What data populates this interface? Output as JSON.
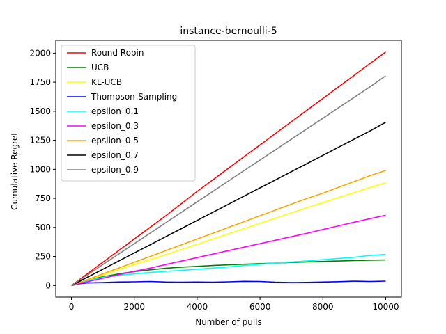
{
  "chart_data": {
    "type": "line",
    "title": "instance-bernoulli-5",
    "xlabel": "Number of pulls",
    "ylabel": "Cumulative Regret",
    "xlim": [
      -500,
      10500
    ],
    "ylim": [
      -100,
      2110
    ],
    "xticks": [
      0,
      2000,
      4000,
      6000,
      8000,
      10000
    ],
    "yticks": [
      0,
      250,
      500,
      750,
      1000,
      1250,
      1500,
      1750,
      2000
    ],
    "legend_position": "upper-left",
    "grid": false,
    "x": [
      0,
      250,
      500,
      1000,
      1500,
      2000,
      2500,
      3000,
      3500,
      4000,
      4500,
      5000,
      5500,
      6000,
      6500,
      7000,
      7500,
      8000,
      8500,
      9000,
      9500,
      10000
    ],
    "series": [
      {
        "name": "Round Robin",
        "color": "#ff0000",
        "values": [
          0,
          50,
          100,
          200,
          300,
          400,
          500,
          600,
          705,
          810,
          910,
          1010,
          1110,
          1210,
          1310,
          1410,
          1510,
          1610,
          1710,
          1810,
          1910,
          2010
        ]
      },
      {
        "name": "UCB",
        "color": "#008000",
        "values": [
          0,
          25,
          45,
          75,
          100,
          120,
          135,
          148,
          158,
          165,
          172,
          178,
          183,
          188,
          193,
          198,
          203,
          207,
          211,
          215,
          218,
          220
        ]
      },
      {
        "name": "KL-UCB",
        "color": "#ffff00",
        "values": [
          0,
          22,
          45,
          90,
          135,
          180,
          222,
          265,
          310,
          355,
          400,
          445,
          490,
          535,
          580,
          625,
          670,
          713,
          757,
          800,
          843,
          885
        ]
      },
      {
        "name": "Thompson-Sampling",
        "color": "#0000ff",
        "values": [
          0,
          15,
          22,
          25,
          30,
          32,
          35,
          30,
          28,
          30,
          28,
          32,
          36,
          35,
          28,
          25,
          27,
          30,
          33,
          37,
          35,
          38
        ]
      },
      {
        "name": "epsilon_0.1",
        "color": "#00ffff",
        "values": [
          0,
          20,
          40,
          70,
          88,
          100,
          112,
          122,
          130,
          140,
          150,
          160,
          172,
          183,
          193,
          202,
          212,
          222,
          233,
          243,
          258,
          268
        ]
      },
      {
        "name": "epsilon_0.3",
        "color": "#ff00ff",
        "values": [
          0,
          18,
          32,
          62,
          92,
          122,
          150,
          180,
          210,
          240,
          270,
          300,
          330,
          360,
          390,
          420,
          450,
          482,
          513,
          545,
          575,
          605
        ]
      },
      {
        "name": "epsilon_0.5",
        "color": "#ffa500",
        "values": [
          0,
          25,
          50,
          100,
          150,
          200,
          250,
          300,
          350,
          400,
          450,
          500,
          550,
          600,
          650,
          700,
          750,
          795,
          845,
          895,
          945,
          990
        ]
      },
      {
        "name": "epsilon_0.7",
        "color": "#000000",
        "values": [
          0,
          35,
          70,
          140,
          210,
          280,
          350,
          420,
          490,
          560,
          630,
          700,
          770,
          840,
          910,
          980,
          1050,
          1120,
          1190,
          1260,
          1330,
          1405
        ]
      },
      {
        "name": "epsilon_0.9",
        "color": "#808080",
        "values": [
          0,
          45,
          90,
          180,
          270,
          360,
          450,
          540,
          630,
          720,
          810,
          900,
          990,
          1080,
          1170,
          1260,
          1350,
          1440,
          1530,
          1620,
          1710,
          1805
        ]
      }
    ]
  }
}
